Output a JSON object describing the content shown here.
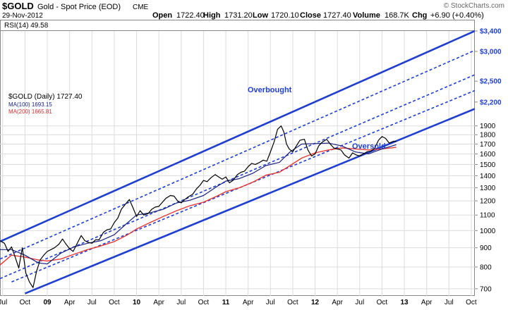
{
  "header": {
    "symbol": "$GOLD",
    "name": "Gold - Spot Price (EOD)",
    "exchange": "CME",
    "date": "29-Nov-2012",
    "watermark": "© StockCharts.com",
    "ohlc": {
      "open_label": "Open",
      "open": "1722.40",
      "high_label": "High",
      "high": "1731.20",
      "low_label": "Low",
      "low": "1720.10",
      "close_label": "Close",
      "close": "1727.40",
      "volume_label": "Volume",
      "volume": "168.7K",
      "chg_label": "Chg",
      "chg": "+6.90 (+0.40%)"
    },
    "rsi_label": "RSI(14) 49.58"
  },
  "legend": [
    {
      "text": "$GOLD (Daily) 1727.40",
      "color": "#000000"
    },
    {
      "text": "MA(100) 1693.15",
      "color": "#1a237e"
    },
    {
      "text": "MA(200) 1665.81",
      "color": "#d32f2f"
    }
  ],
  "annotations": [
    {
      "text": "Overbought",
      "color": "#1f3fcf"
    },
    {
      "text": "Oversold",
      "color": "#1f3fcf"
    }
  ],
  "colors": {
    "price": "#000000",
    "ma100": "#1a237e",
    "ma200": "#e53935",
    "channel": "#1f3fcf",
    "grid": "#dcdcdc",
    "blue_label": "#1f3fcf"
  },
  "chart_data": {
    "type": "line",
    "title": "$GOLD Gold - Spot Price (EOD) CME",
    "scale": "log",
    "x_range": [
      2008.47,
      2013.79
    ],
    "ylim": [
      670,
      3400
    ],
    "x_ticks": [
      {
        "t": 2008.5,
        "label": "Jul"
      },
      {
        "t": 2008.75,
        "label": "Oct"
      },
      {
        "t": 2009.0,
        "label": "09",
        "bold": true
      },
      {
        "t": 2009.25,
        "label": "Apr"
      },
      {
        "t": 2009.5,
        "label": "Jul"
      },
      {
        "t": 2009.75,
        "label": "Oct"
      },
      {
        "t": 2010.0,
        "label": "10",
        "bold": true
      },
      {
        "t": 2010.25,
        "label": "Apr"
      },
      {
        "t": 2010.5,
        "label": "Jul"
      },
      {
        "t": 2010.75,
        "label": "Oct"
      },
      {
        "t": 2011.0,
        "label": "11",
        "bold": true
      },
      {
        "t": 2011.25,
        "label": "Apr"
      },
      {
        "t": 2011.5,
        "label": "Jul"
      },
      {
        "t": 2011.75,
        "label": "Oct"
      },
      {
        "t": 2012.0,
        "label": "12",
        "bold": true
      },
      {
        "t": 2012.25,
        "label": "Apr"
      },
      {
        "t": 2012.5,
        "label": "Jul"
      },
      {
        "t": 2012.75,
        "label": "Oct"
      },
      {
        "t": 2013.0,
        "label": "13",
        "bold": true
      },
      {
        "t": 2013.25,
        "label": "Apr"
      },
      {
        "t": 2013.5,
        "label": "Jul"
      },
      {
        "t": 2013.75,
        "label": "Oct"
      }
    ],
    "y_ticks": [
      {
        "v": 700,
        "label": "700"
      },
      {
        "v": 800,
        "label": "800"
      },
      {
        "v": 900,
        "label": "900"
      },
      {
        "v": 1000,
        "label": "1000"
      },
      {
        "v": 1100,
        "label": "1100"
      },
      {
        "v": 1200,
        "label": "1200"
      },
      {
        "v": 1300,
        "label": "1300"
      },
      {
        "v": 1400,
        "label": "1400"
      },
      {
        "v": 1500,
        "label": "1500"
      },
      {
        "v": 1600,
        "label": "1600"
      },
      {
        "v": 1700,
        "label": "1700"
      },
      {
        "v": 1800,
        "label": "1800"
      },
      {
        "v": 1900,
        "label": "1900"
      },
      {
        "v": 2200,
        "label": "$2,200",
        "blue": true
      },
      {
        "v": 2500,
        "label": "$2,500",
        "blue": true
      },
      {
        "v": 3000,
        "label": "$3,000",
        "blue": true
      },
      {
        "v": 3400,
        "label": "$3,400",
        "blue": true
      }
    ],
    "series": [
      {
        "name": "$GOLD (Daily)",
        "x": [
          2008.47,
          2008.52,
          2008.56,
          2008.6,
          2008.64,
          2008.68,
          2008.72,
          2008.76,
          2008.8,
          2008.84,
          2008.88,
          2008.92,
          2008.96,
          2009.0,
          2009.04,
          2009.08,
          2009.13,
          2009.17,
          2009.21,
          2009.25,
          2009.29,
          2009.33,
          2009.38,
          2009.42,
          2009.46,
          2009.5,
          2009.54,
          2009.58,
          2009.63,
          2009.67,
          2009.71,
          2009.75,
          2009.79,
          2009.83,
          2009.88,
          2009.92,
          2009.96,
          2010.0,
          2010.04,
          2010.08,
          2010.13,
          2010.17,
          2010.21,
          2010.25,
          2010.29,
          2010.33,
          2010.38,
          2010.42,
          2010.46,
          2010.5,
          2010.54,
          2010.58,
          2010.63,
          2010.67,
          2010.71,
          2010.75,
          2010.79,
          2010.83,
          2010.88,
          2010.92,
          2010.96,
          2011.0,
          2011.04,
          2011.08,
          2011.13,
          2011.17,
          2011.21,
          2011.25,
          2011.29,
          2011.33,
          2011.38,
          2011.42,
          2011.46,
          2011.5,
          2011.54,
          2011.58,
          2011.62,
          2011.65,
          2011.68,
          2011.71,
          2011.75,
          2011.79,
          2011.83,
          2011.88,
          2011.92,
          2011.96,
          2012.0,
          2012.04,
          2012.08,
          2012.13,
          2012.17,
          2012.21,
          2012.25,
          2012.29,
          2012.33,
          2012.38,
          2012.42,
          2012.46,
          2012.5,
          2012.54,
          2012.58,
          2012.63,
          2012.67,
          2012.71,
          2012.75,
          2012.79,
          2012.83,
          2012.88,
          2012.91
        ],
        "values": [
          940,
          925,
          880,
          905,
          850,
          795,
          900,
          770,
          730,
          705,
          780,
          835,
          860,
          880,
          890,
          900,
          920,
          950,
          920,
          895,
          880,
          920,
          970,
          940,
          930,
          925,
          945,
          945,
          990,
          1005,
          1010,
          1050,
          1080,
          1140,
          1180,
          1210,
          1150,
          1090,
          1130,
          1100,
          1110,
          1140,
          1155,
          1160,
          1190,
          1220,
          1240,
          1235,
          1200,
          1185,
          1210,
          1230,
          1250,
          1290,
          1320,
          1360,
          1350,
          1380,
          1410,
          1390,
          1370,
          1390,
          1340,
          1360,
          1410,
          1430,
          1440,
          1480,
          1510,
          1500,
          1520,
          1540,
          1530,
          1620,
          1720,
          1860,
          1900,
          1830,
          1700,
          1650,
          1620,
          1680,
          1740,
          1750,
          1640,
          1580,
          1600,
          1680,
          1720,
          1750,
          1700,
          1660,
          1650,
          1640,
          1590,
          1560,
          1610,
          1590,
          1580,
          1600,
          1620,
          1630,
          1660,
          1740,
          1780,
          1760,
          1710,
          1730,
          1727
        ]
      },
      {
        "name": "MA(100)",
        "x": [
          2008.47,
          2008.6,
          2008.75,
          2008.9,
          2009.0,
          2009.15,
          2009.3,
          2009.45,
          2009.6,
          2009.75,
          2009.9,
          2010.0,
          2010.15,
          2010.3,
          2010.45,
          2010.6,
          2010.75,
          2010.9,
          2011.0,
          2011.15,
          2011.3,
          2011.45,
          2011.6,
          2011.72,
          2011.85,
          2012.0,
          2012.15,
          2012.3,
          2012.45,
          2012.6,
          2012.75,
          2012.91
        ],
        "values": [
          890,
          890,
          860,
          820,
          815,
          870,
          905,
          925,
          940,
          975,
          1050,
          1100,
          1115,
          1140,
          1185,
          1205,
          1240,
          1310,
          1355,
          1375,
          1420,
          1490,
          1520,
          1620,
          1700,
          1705,
          1710,
          1680,
          1620,
          1600,
          1650,
          1693
        ]
      },
      {
        "name": "MA(200)",
        "x": [
          2008.47,
          2008.6,
          2008.75,
          2008.9,
          2009.0,
          2009.15,
          2009.3,
          2009.45,
          2009.6,
          2009.75,
          2009.9,
          2010.0,
          2010.15,
          2010.3,
          2010.45,
          2010.6,
          2010.75,
          2010.9,
          2011.0,
          2011.15,
          2011.3,
          2011.45,
          2011.6,
          2011.72,
          2011.85,
          2012.0,
          2012.15,
          2012.3,
          2012.45,
          2012.6,
          2012.75,
          2012.91
        ],
        "values": [
          810,
          860,
          850,
          835,
          830,
          840,
          865,
          890,
          910,
          935,
          975,
          1010,
          1050,
          1090,
          1130,
          1165,
          1190,
          1235,
          1270,
          1300,
          1345,
          1405,
          1430,
          1490,
          1560,
          1610,
          1640,
          1660,
          1650,
          1640,
          1650,
          1666
        ]
      }
    ],
    "channel_lines": [
      {
        "style": "solid",
        "x": [
          2008.47,
          2013.79
        ],
        "values": [
          935,
          3400
        ]
      },
      {
        "style": "dashed",
        "x": [
          2008.47,
          2013.79
        ],
        "values": [
          840,
          3020
        ]
      },
      {
        "style": "dashed",
        "x": [
          2008.47,
          2013.79
        ],
        "values": [
          745,
          2600
        ]
      },
      {
        "style": "dashed",
        "x": [
          2008.6,
          2013.79
        ],
        "values": [
          730,
          2360
        ]
      },
      {
        "style": "solid",
        "x": [
          2008.75,
          2013.79
        ],
        "values": [
          680,
          2110
        ]
      }
    ]
  }
}
